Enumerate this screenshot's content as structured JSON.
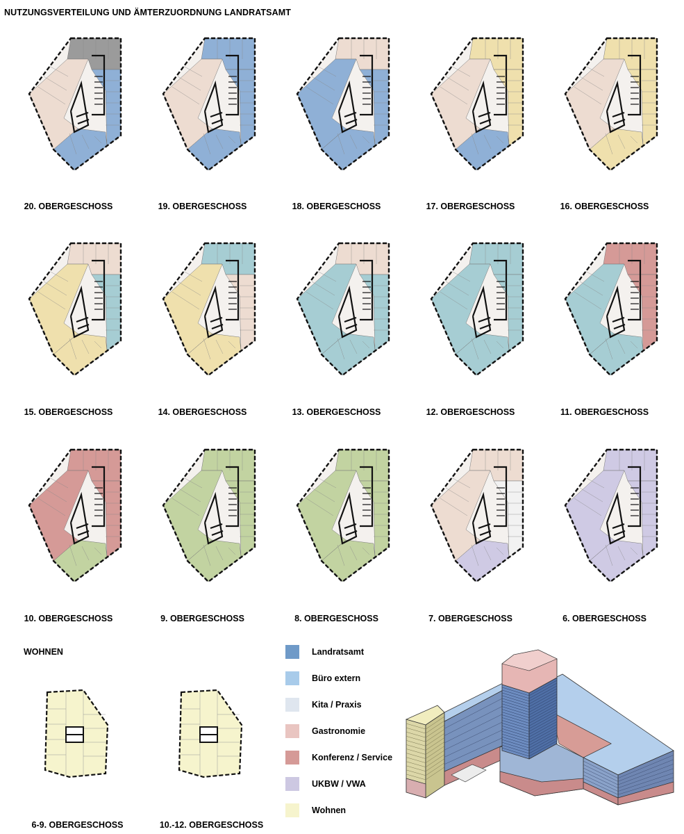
{
  "page_title": "NUTZUNGSVERTEILUNG UND ÄMTERZUORDNUNG LANDRATSAMT",
  "floors": [
    {
      "label": "20. OBERGESCHOSS",
      "zones": [
        "grey",
        "landratsamt",
        "landratsamt",
        "beige"
      ]
    },
    {
      "label": "19. OBERGESCHOSS",
      "zones": [
        "landratsamt",
        "landratsamt",
        "landratsamt",
        "beige"
      ]
    },
    {
      "label": "18. OBERGESCHOSS",
      "zones": [
        "beige",
        "landratsamt",
        "landratsamt",
        "landratsamt"
      ]
    },
    {
      "label": "17. OBERGESCHOSS",
      "zones": [
        "yellow",
        "yellow",
        "landratsamt",
        "beige"
      ]
    },
    {
      "label": "16. OBERGESCHOSS",
      "zones": [
        "yellow",
        "yellow",
        "yellow",
        "beige"
      ]
    },
    {
      "label": "15. OBERGESCHOSS",
      "zones": [
        "beige",
        "teal",
        "yellow",
        "yellow"
      ]
    },
    {
      "label": "14. OBERGESCHOSS",
      "zones": [
        "teal",
        "beige",
        "yellow",
        "yellow"
      ]
    },
    {
      "label": "13. OBERGESCHOSS",
      "zones": [
        "beige",
        "teal",
        "teal",
        "teal"
      ]
    },
    {
      "label": "12. OBERGESCHOSS",
      "zones": [
        "teal",
        "teal",
        "teal",
        "teal"
      ]
    },
    {
      "label": "11. OBERGESCHOSS",
      "zones": [
        "konferenz",
        "konferenz",
        "teal",
        "teal"
      ]
    },
    {
      "label": "10. OBERGESCHOSS",
      "zones": [
        "konferenz",
        "konferenz",
        "green",
        "konferenz"
      ]
    },
    {
      "label": "9. OBERGESCHOSS",
      "zones": [
        "green",
        "green",
        "green",
        "green"
      ]
    },
    {
      "label": "8. OBERGESCHOSS",
      "zones": [
        "green",
        "green",
        "green",
        "green"
      ]
    },
    {
      "label": "7. OBERGESCHOSS",
      "zones": [
        "beige",
        "white",
        "ukbw",
        "beige"
      ]
    },
    {
      "label": "6. OBERGESCHOSS",
      "zones": [
        "ukbw",
        "ukbw",
        "ukbw",
        "ukbw"
      ]
    }
  ],
  "wohnen": {
    "title": "WOHNEN",
    "plans": [
      {
        "label": "6-9. OBERGESCHOSS"
      },
      {
        "label": "10.-12. OBERGESCHOSS"
      }
    ]
  },
  "legend": [
    {
      "label": "Landratsamt",
      "color": "#6f9ac8"
    },
    {
      "label": "Büro extern",
      "color": "#a8cbea"
    },
    {
      "label": "Kita / Praxis",
      "color": "#dfe6ef"
    },
    {
      "label": "Gastronomie",
      "color": "#e9c5c1"
    },
    {
      "label": "Konferenz / Service",
      "color": "#d59a97"
    },
    {
      "label": "UKBW / VWA",
      "color": "#cdc8e2"
    },
    {
      "label": "Wohnen",
      "color": "#f6f4cd"
    }
  ],
  "zone_colors": {
    "landratsamt": "#8fb0d6",
    "grey": "#9b9b9b",
    "beige": "#eddcd1",
    "yellow": "#efe0ad",
    "teal": "#a6cdd3",
    "konferenz": "#d59a97",
    "green": "#c2d3a1",
    "ukbw": "#cfcae4",
    "white": "#f2f2f2",
    "wohnen": "#f6f4cd"
  }
}
